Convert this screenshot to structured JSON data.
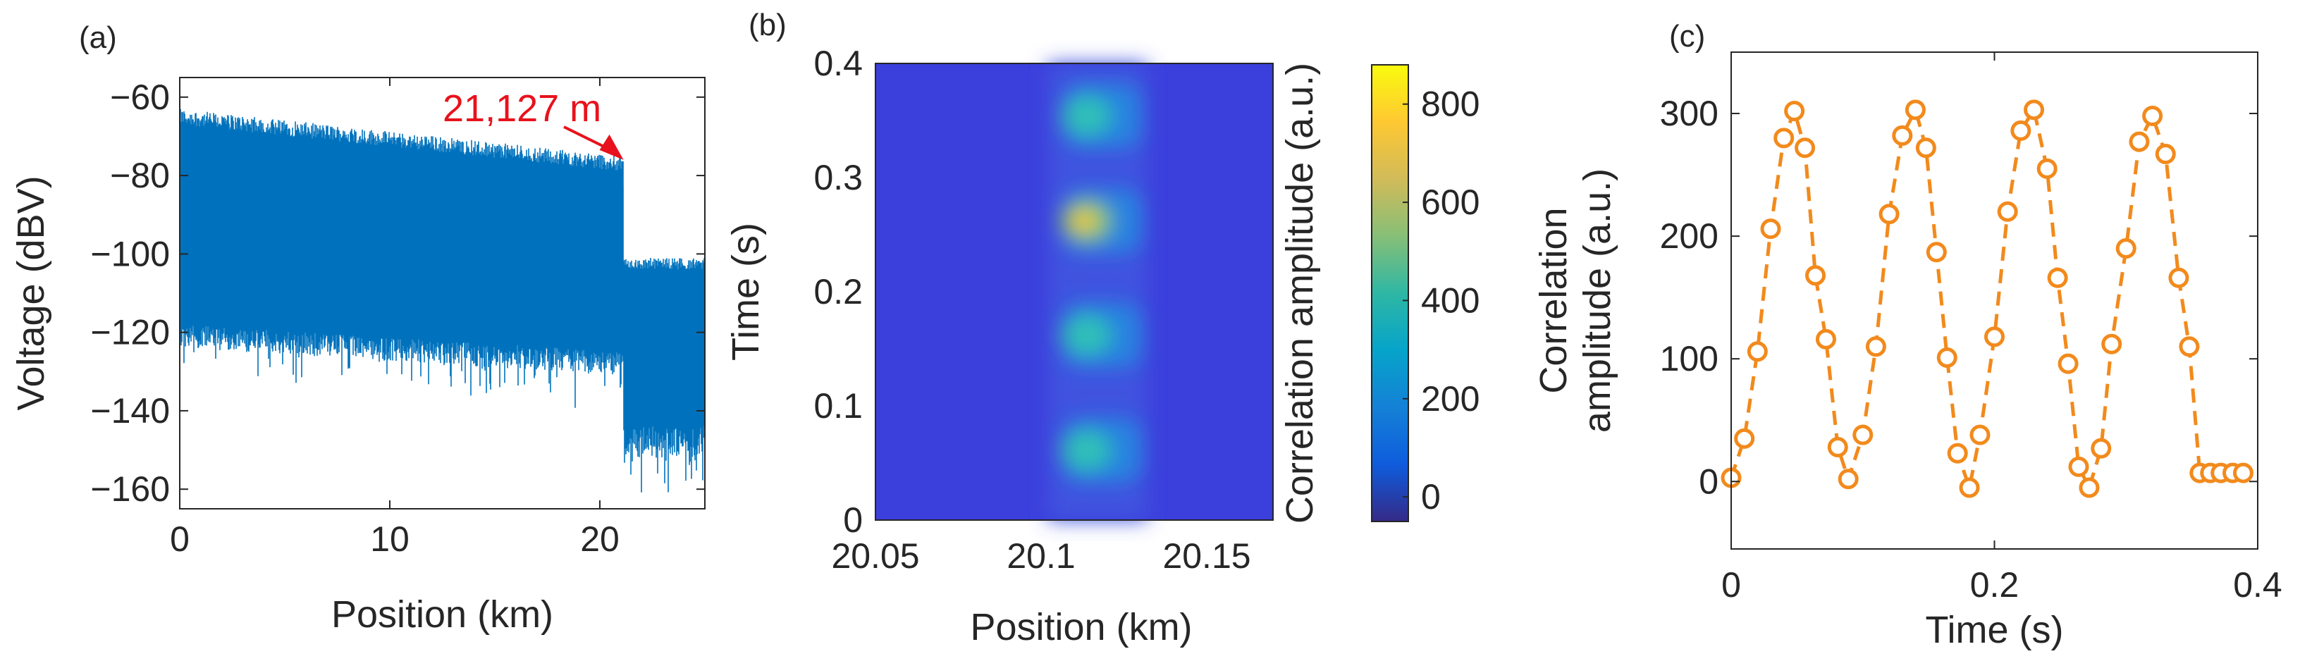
{
  "colors": {
    "trace_blue": "#0072BD",
    "annotation_red": "#E8121C",
    "marker_orange": "#F28A1C",
    "heatmap_background": "#3B3FDC"
  },
  "panels": {
    "a": {
      "label": "(a)"
    },
    "b": {
      "label": "(b)"
    },
    "c": {
      "label": "(c)"
    }
  },
  "chart_data": [
    {
      "panel": "(a)",
      "type": "line",
      "xlabel": "Position (km)",
      "ylabel": "Voltage (dBV)",
      "xlim": [
        0,
        25
      ],
      "ylim": [
        -165,
        -55
      ],
      "xticks": [
        "0",
        "10",
        "20"
      ],
      "yticks": [
        "−60",
        "−80",
        "−100",
        "−120",
        "−140",
        "−160"
      ],
      "series": [
        {
          "description_of_envelope": "noisy reflectometry trace",
          "upper_envelope": {
            "x": [
              0,
              21.127
            ],
            "y": [
              -67,
              -79
            ]
          },
          "lower_envelope": {
            "x": [
              0,
              21.127
            ],
            "y": [
              -118,
              -125
            ]
          },
          "after_end": {
            "x": [
              21.127,
              25
            ],
            "upper": -104,
            "lower": -152
          }
        }
      ],
      "annotation": {
        "text": "21,127 m",
        "x": 21.127,
        "y": -76
      },
      "grid": false
    },
    {
      "panel": "(b)",
      "type": "heatmap",
      "xlabel": "Position (km)",
      "ylabel": "Time (s)",
      "xlim": [
        20.05,
        20.17
      ],
      "ylim": [
        0,
        0.4
      ],
      "xticks": [
        "20.05",
        "20.1",
        "20.15"
      ],
      "yticks": [
        "0",
        "0.1",
        "0.2",
        "0.3",
        "0.4"
      ],
      "colorbar": {
        "label": "Correlation amplitude (a.u.)",
        "range": [
          -50,
          880
        ],
        "ticks": [
          "0",
          "200",
          "400",
          "600",
          "800"
        ]
      },
      "hotspots": [
        {
          "x": 20.112,
          "y": 0.061,
          "value": 420
        },
        {
          "x": 20.112,
          "y": 0.162,
          "value": 430
        },
        {
          "x": 20.112,
          "y": 0.262,
          "value": 860
        },
        {
          "x": 20.112,
          "y": 0.354,
          "value": 380
        }
      ]
    },
    {
      "panel": "(c)",
      "type": "line",
      "xlabel": "Time (s)",
      "ylabel": "Correlation amplitude (a.u.)",
      "ylabel_lines": [
        "Correlation",
        "amplitude (a.u.)"
      ],
      "xlim": [
        0,
        0.4
      ],
      "ylim": [
        -55,
        350
      ],
      "xticks": [
        "0",
        "0.2",
        "0.4"
      ],
      "yticks": [
        "0",
        "100",
        "200",
        "300"
      ],
      "series": [
        {
          "marker": "circle",
          "linestyle": "dashed",
          "x": [
            0.0,
            0.01,
            0.02,
            0.03,
            0.04,
            0.048,
            0.056,
            0.064,
            0.072,
            0.081,
            0.089,
            0.1,
            0.11,
            0.12,
            0.13,
            0.14,
            0.148,
            0.156,
            0.164,
            0.172,
            0.181,
            0.189,
            0.2,
            0.21,
            0.22,
            0.23,
            0.24,
            0.248,
            0.256,
            0.264,
            0.272,
            0.281,
            0.289,
            0.3,
            0.31,
            0.32,
            0.33,
            0.34,
            0.348,
            0.356,
            0.364,
            0.372,
            0.381,
            0.389
          ],
          "y": [
            3,
            35,
            106,
            206,
            280,
            302,
            272,
            168,
            116,
            28,
            2,
            38,
            110,
            218,
            282,
            303,
            272,
            187,
            101,
            23,
            -5,
            38,
            118,
            220,
            286,
            303,
            255,
            166,
            96,
            12,
            -5,
            27,
            112,
            190,
            277,
            298,
            267,
            166,
            110,
            7,
            7,
            7,
            7,
            7
          ]
        }
      ],
      "grid": false
    }
  ]
}
